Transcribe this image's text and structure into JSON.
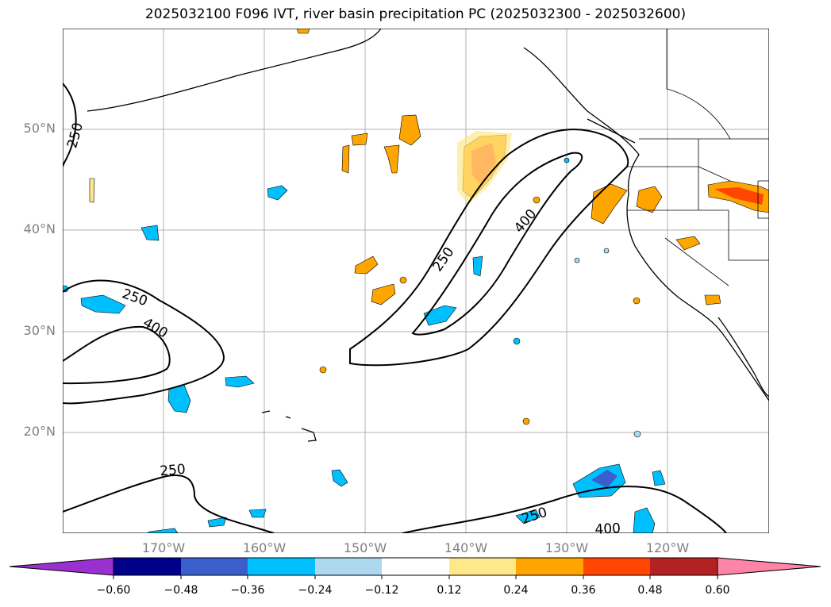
{
  "title": "2025032100 F096 IVT, river basin precipitation PC (2025032300 - 2025032600)",
  "lat_labels": [
    "50°N",
    "40°N",
    "30°N",
    "20°N"
  ],
  "lon_labels": [
    "170°W",
    "160°W",
    "150°W",
    "140°W",
    "130°W",
    "120°W"
  ],
  "contour_labels": [
    "250",
    "250",
    "400",
    "250",
    "400",
    "250",
    "250",
    "400"
  ],
  "colorbar": {
    "ticks": [
      "−0.60",
      "−0.48",
      "−0.36",
      "−0.24",
      "−0.12",
      "0.12",
      "0.24",
      "0.36",
      "0.48",
      "0.60"
    ],
    "colors": [
      "#9b30d0",
      "#00008b",
      "#3a5fcd",
      "#00bfff",
      "#add8f0",
      "#ffffff",
      "#ffe88a",
      "#ffa500",
      "#ff4500",
      "#b22222",
      "#ff85a8"
    ]
  }
}
